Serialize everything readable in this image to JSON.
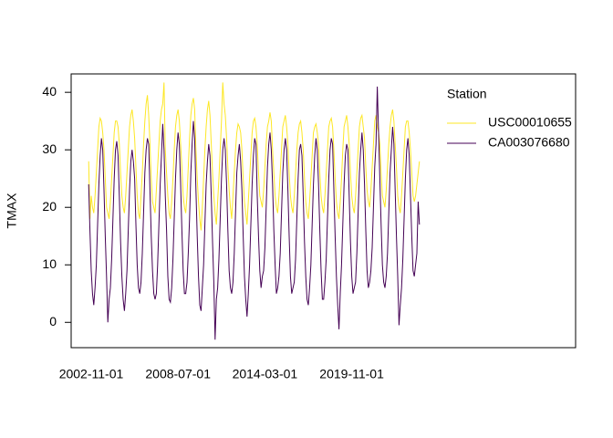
{
  "chart_data": {
    "type": "line",
    "y_label": "TMAX",
    "legend_title": "Station",
    "legend_position": "top-right",
    "categories": [
      null,
      null,
      "2002-11-01",
      null,
      null,
      null,
      null,
      null,
      null,
      null,
      null,
      null,
      null,
      null,
      null,
      null,
      null,
      null,
      null,
      null,
      null,
      null,
      null,
      null,
      null,
      null,
      null,
      null,
      null,
      null,
      null,
      null,
      null,
      null,
      null,
      null,
      null,
      null,
      null,
      null,
      null,
      null,
      null,
      null,
      null,
      null,
      null,
      null,
      null,
      null,
      null,
      null,
      null,
      null,
      null,
      null,
      null,
      null,
      null,
      null,
      null,
      null,
      null,
      null,
      null,
      null,
      null,
      null,
      null,
      null,
      "2008-07-01",
      null,
      null,
      null,
      null,
      null,
      null,
      null,
      null,
      null,
      null,
      null,
      null,
      null,
      null,
      null,
      null,
      null,
      null,
      null,
      null,
      null,
      null,
      null,
      null,
      null,
      null,
      null,
      null,
      null,
      null,
      null,
      null,
      null,
      null,
      null,
      null,
      null,
      null,
      null,
      null,
      null,
      null,
      null,
      null,
      null,
      null,
      null,
      null,
      null,
      null,
      null,
      null,
      null,
      null,
      null,
      null,
      null,
      null,
      null,
      null,
      null,
      null,
      null,
      null,
      null,
      null,
      null,
      "2014-03-01",
      null,
      null,
      null,
      null,
      null,
      null,
      null,
      null,
      null,
      null,
      null,
      null,
      null,
      null,
      null,
      null,
      null,
      null,
      null,
      null,
      null,
      null,
      null,
      null,
      null,
      null,
      null,
      null,
      null,
      null,
      null,
      null,
      null,
      null,
      null,
      null,
      null,
      null,
      null,
      null,
      null,
      null,
      null,
      null,
      null,
      null,
      null,
      null,
      null,
      null,
      null,
      null,
      null,
      null,
      null,
      null,
      null,
      null,
      null,
      null,
      null,
      null,
      null,
      null,
      null,
      null,
      null,
      "2019-11-01",
      null,
      null,
      null,
      null,
      null,
      null,
      null,
      null,
      null,
      null,
      null,
      null,
      null,
      null,
      null,
      null,
      null,
      null,
      null,
      null,
      null,
      null,
      null,
      null,
      null,
      null,
      null,
      null,
      null,
      null,
      null,
      null,
      null,
      null,
      null,
      null,
      null,
      null,
      null,
      null,
      null,
      null,
      null,
      null,
      null,
      null,
      null,
      null,
      null,
      null,
      null,
      null,
      null
    ],
    "series": [
      {
        "name": "USC00010655",
        "color": "#FDE725",
        "values": [
          28,
          18,
          22,
          20,
          19,
          22,
          26,
          30,
          34,
          35.5,
          35,
          33,
          30,
          25,
          20,
          19,
          18,
          21,
          25,
          29,
          33,
          35,
          35,
          34,
          31,
          26,
          22,
          20,
          19,
          22,
          26,
          30,
          34,
          36,
          37,
          35,
          32,
          27,
          22,
          19,
          18,
          22,
          26,
          31,
          35,
          38,
          39.5,
          36,
          31,
          25,
          21,
          20,
          19,
          23,
          27,
          31,
          35,
          37,
          38,
          41.7,
          30,
          26,
          22,
          19,
          18,
          21,
          25,
          30,
          34,
          36,
          37,
          35,
          31,
          27,
          22,
          20,
          19,
          22,
          27,
          32,
          36,
          38,
          39,
          37,
          30,
          25,
          21,
          18,
          16,
          20,
          25,
          30,
          34,
          37,
          38.5,
          36,
          31,
          26,
          22,
          19,
          17,
          21,
          25,
          30,
          35,
          41.7,
          38,
          36,
          32,
          27,
          23,
          20,
          18,
          22,
          26,
          30,
          33,
          34.5,
          34,
          33,
          30,
          25,
          21,
          19,
          17,
          21,
          25,
          29,
          33,
          35,
          35.5,
          34,
          31,
          26,
          22,
          21,
          20,
          23,
          27,
          31,
          34,
          35,
          36.5,
          35,
          30,
          26,
          22,
          20,
          19,
          22,
          26,
          30,
          34,
          35,
          36,
          34,
          31,
          26,
          22,
          20,
          19,
          22,
          26,
          30,
          33,
          34.5,
          35,
          33,
          30,
          25,
          21,
          19,
          18,
          21,
          25,
          29,
          33,
          34,
          34.5,
          33,
          31,
          26,
          22,
          20,
          19,
          22,
          26,
          30,
          34,
          35,
          35.5,
          34,
          30,
          25,
          21,
          19,
          18,
          21,
          25,
          30,
          34,
          35,
          36,
          34,
          31,
          26,
          22,
          20,
          19,
          22,
          26,
          30,
          34,
          35.5,
          36,
          34,
          32,
          27,
          23,
          21,
          20,
          23,
          27,
          31,
          35,
          36,
          34,
          33,
          31,
          26,
          22,
          21,
          20,
          23,
          27,
          31,
          34,
          36,
          37,
          35,
          31,
          27,
          22,
          20,
          19,
          22,
          26,
          30,
          34,
          35,
          35,
          33,
          30,
          26,
          22,
          21,
          22,
          24,
          26,
          28
        ]
      },
      {
        "name": "CA003076680",
        "color": "#440154",
        "values": [
          24,
          16,
          9,
          5,
          3,
          6,
          10,
          17,
          24,
          29,
          32,
          30,
          23,
          15,
          8,
          0,
          4,
          6,
          11,
          18,
          25,
          30,
          31.5,
          29,
          22,
          14,
          8,
          4,
          2,
          5,
          9,
          16,
          23,
          28,
          30,
          28,
          25,
          17,
          10,
          6,
          5,
          7,
          12,
          19,
          26,
          30,
          32,
          31,
          23,
          15,
          9,
          5,
          4,
          5,
          10,
          17,
          24,
          29,
          34.5,
          30,
          22,
          16,
          8,
          4,
          3.5,
          6,
          11,
          18,
          25,
          30,
          33,
          31,
          24,
          16,
          9,
          5,
          5,
          7,
          12,
          18,
          26,
          31,
          35,
          32,
          23,
          15,
          8,
          3,
          2,
          6,
          10,
          17,
          24,
          28,
          31,
          29,
          22,
          14,
          7,
          -3,
          4,
          6,
          11,
          18,
          25,
          30,
          32,
          30,
          24,
          16,
          9,
          6,
          5,
          7,
          12,
          19,
          26,
          29,
          31,
          28,
          23,
          15,
          8,
          4,
          1,
          5,
          10,
          17,
          24,
          29,
          32,
          31,
          22,
          15,
          9,
          6,
          8,
          9,
          13,
          20,
          27,
          31,
          33,
          30,
          24,
          16,
          10,
          5,
          6,
          8,
          12,
          19,
          26,
          30,
          32,
          30,
          23,
          15,
          8,
          5,
          6,
          7,
          11,
          18,
          25,
          30,
          31,
          29,
          22,
          14,
          8,
          4,
          3,
          6,
          10,
          17,
          24,
          29,
          32,
          30,
          24,
          16,
          9,
          4,
          4,
          7,
          11,
          18,
          25,
          30,
          32,
          31,
          23,
          15,
          8,
          3,
          -1.2,
          5,
          10,
          17,
          24,
          29,
          31,
          30,
          22,
          14,
          8,
          5,
          6,
          7,
          12,
          19,
          26,
          30,
          33,
          30,
          24,
          16,
          9,
          6,
          7,
          9,
          13,
          20,
          27,
          31,
          41,
          33,
          25,
          17,
          10,
          7,
          6,
          8,
          12,
          19,
          26,
          30,
          34,
          31,
          23,
          15,
          8,
          -0.5,
          3,
          6,
          11,
          18,
          25,
          30,
          32,
          29,
          22,
          15,
          9,
          8,
          10,
          12,
          21,
          17
        ]
      }
    ],
    "ylim": [
      -4.4,
      43.2
    ],
    "yticks": [
      0,
      10,
      20,
      30,
      40
    ]
  }
}
